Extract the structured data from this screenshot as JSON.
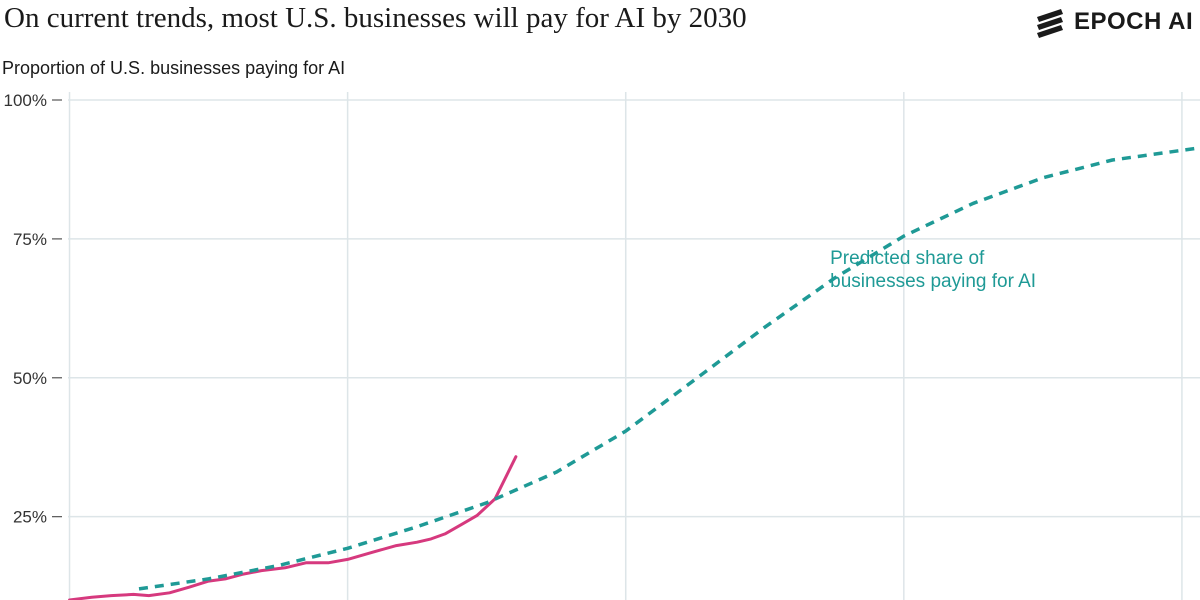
{
  "title": "On current trends, most U.S. businesses will pay for AI by 2030",
  "brand": {
    "name": "EPOCH AI",
    "logo_icon": "epoch-stripes-icon"
  },
  "colors": {
    "actual": "#d6397e",
    "predicted": "#1f9a96",
    "grid": "#dde5e8",
    "text": "#1a1a1a"
  },
  "chart_data": {
    "type": "line",
    "ylabel": "Proportion of U.S. businesses paying for AI",
    "ylim": [
      10,
      100
    ],
    "yticks": [
      {
        "value": 25,
        "label": "25%"
      },
      {
        "value": 50,
        "label": "50%"
      },
      {
        "value": 75,
        "label": "75%"
      },
      {
        "value": 100,
        "label": "100%"
      }
    ],
    "xlim": [
      2022.5,
      2031.13
    ],
    "xgrid": [
      2023,
      2025,
      2027,
      2029,
      2031
    ],
    "grid_vertical": true,
    "annotation": {
      "lines": [
        "Predicted share of",
        "businesses paying for AI"
      ],
      "x": 2028.47,
      "y": 70.5
    },
    "series": [
      {
        "style": "solid",
        "x": [
          2023.0,
          2023.16,
          2023.3,
          2023.46,
          2023.57,
          2023.72,
          2023.86,
          2024.0,
          2024.12,
          2024.24,
          2024.38,
          2024.55,
          2024.7,
          2024.86,
          2025.0,
          2025.18,
          2025.35,
          2025.5,
          2025.6,
          2025.7,
          2025.82,
          2025.93,
          2026.06,
          2026.21
        ],
        "y": [
          10.0,
          10.5,
          10.8,
          11.0,
          10.8,
          11.3,
          12.3,
          13.4,
          13.8,
          14.6,
          15.3,
          15.8,
          16.7,
          16.7,
          17.3,
          18.6,
          19.8,
          20.4,
          21.0,
          21.9,
          23.6,
          25.2,
          28.2,
          35.8
        ]
      },
      {
        "style": "dashed",
        "x": [
          2023.5,
          2024.0,
          2024.5,
          2025.0,
          2025.5,
          2026.0,
          2026.5,
          2027.0,
          2027.5,
          2028.0,
          2028.5,
          2029.0,
          2029.5,
          2030.0,
          2030.5,
          2031.13
        ],
        "y": [
          12.0,
          13.8,
          16.2,
          19.3,
          23.2,
          27.5,
          33.0,
          40.4,
          49.7,
          59.1,
          67.9,
          75.5,
          81.4,
          86.0,
          89.2,
          91.4
        ]
      }
    ]
  }
}
